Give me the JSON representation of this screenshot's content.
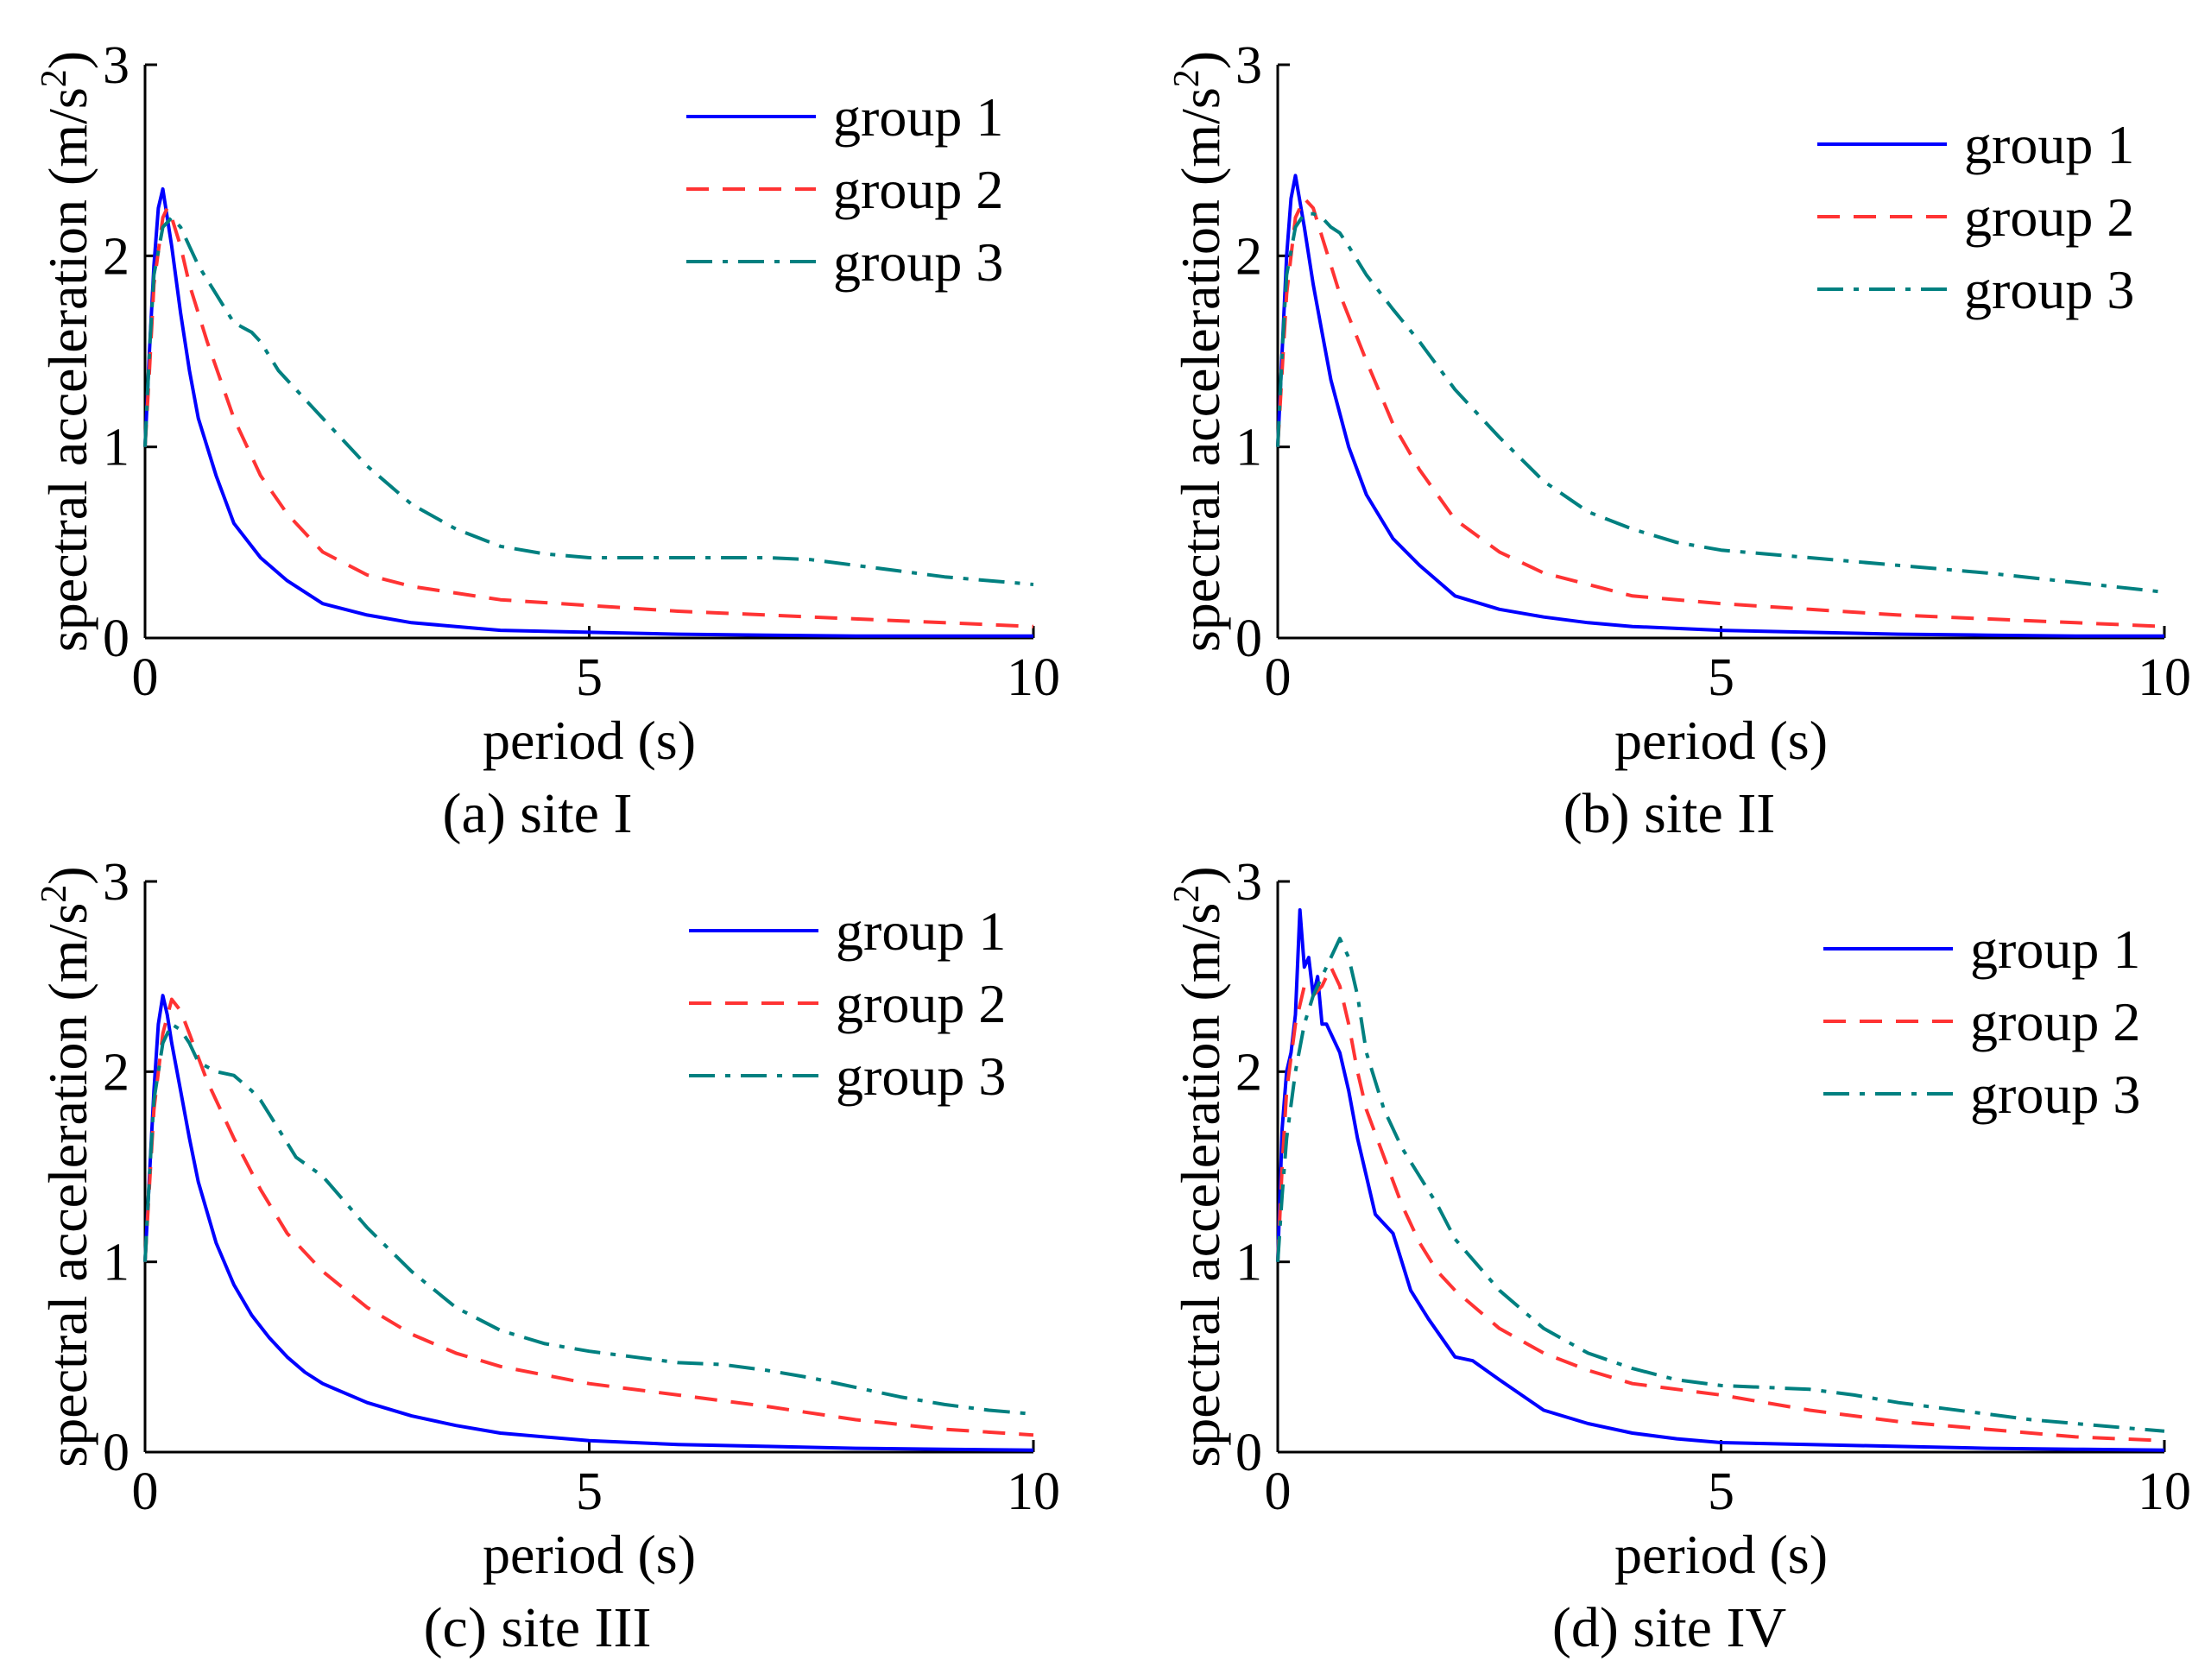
{
  "chart_data": [
    {
      "type": "line",
      "caption": "(a) site I",
      "xlabel": "period (s)",
      "ylabel": "spectral acceleration (m/s²)",
      "ylabel_main": "spectral acceleration (m/s",
      "ylabel_sup": "2",
      "ylabel_end": ")",
      "xlim": [
        0,
        10
      ],
      "ylim": [
        0,
        3
      ],
      "xticks": [
        "0",
        "5",
        "10"
      ],
      "yticks": [
        "0",
        "1",
        "2",
        "3"
      ],
      "legend_position": "top-right",
      "series": [
        {
          "name": "group 1",
          "style": "solid",
          "color": "#0000ff",
          "x": [
            0,
            0.05,
            0.1,
            0.15,
            0.2,
            0.3,
            0.4,
            0.5,
            0.6,
            0.8,
            1.0,
            1.3,
            1.6,
            2.0,
            2.5,
            3.0,
            3.5,
            4.0,
            5.0,
            6.0,
            7.0,
            8.0,
            9.0,
            10.0
          ],
          "y": [
            1.0,
            1.5,
            1.95,
            2.25,
            2.35,
            2.05,
            1.7,
            1.4,
            1.15,
            0.85,
            0.6,
            0.42,
            0.3,
            0.18,
            0.12,
            0.08,
            0.06,
            0.04,
            0.03,
            0.02,
            0.015,
            0.01,
            0.01,
            0.01
          ]
        },
        {
          "name": "group 2",
          "style": "dashed",
          "color": "#ff3333",
          "x": [
            0,
            0.05,
            0.1,
            0.2,
            0.25,
            0.3,
            0.4,
            0.5,
            0.7,
            1.0,
            1.3,
            1.6,
            2.0,
            2.5,
            3.0,
            4.0,
            5.0,
            6.0,
            7.0,
            8.0,
            9.0,
            10.0
          ],
          "y": [
            1.0,
            1.4,
            1.85,
            2.2,
            2.25,
            2.2,
            2.05,
            1.85,
            1.55,
            1.15,
            0.85,
            0.65,
            0.45,
            0.33,
            0.27,
            0.2,
            0.17,
            0.14,
            0.12,
            0.1,
            0.08,
            0.06
          ]
        },
        {
          "name": "group 3",
          "style": "dashdot",
          "color": "#008080",
          "x": [
            0,
            0.05,
            0.1,
            0.2,
            0.3,
            0.4,
            0.5,
            0.6,
            0.8,
            1.0,
            1.2,
            1.3,
            1.5,
            1.7,
            2.0,
            2.5,
            3.0,
            3.5,
            4.0,
            4.5,
            5.0,
            5.5,
            6.0,
            6.5,
            7.0,
            7.5,
            8.0,
            8.5,
            9.0,
            9.5,
            10.0
          ],
          "y": [
            1.0,
            1.5,
            1.9,
            2.15,
            2.2,
            2.15,
            2.05,
            1.95,
            1.8,
            1.65,
            1.6,
            1.55,
            1.4,
            1.3,
            1.15,
            0.9,
            0.7,
            0.57,
            0.48,
            0.44,
            0.42,
            0.42,
            0.42,
            0.42,
            0.42,
            0.41,
            0.38,
            0.35,
            0.32,
            0.3,
            0.28
          ]
        }
      ]
    },
    {
      "type": "line",
      "caption": "(b) site II",
      "xlabel": "period (s)",
      "ylabel": "spectral acceleration (m/s²)",
      "ylabel_main": "spectral acceleration (m/s",
      "ylabel_sup": "2",
      "ylabel_end": ")",
      "xlim": [
        0,
        10
      ],
      "ylim": [
        0,
        3
      ],
      "xticks": [
        "0",
        "5",
        "10"
      ],
      "yticks": [
        "0",
        "1",
        "2",
        "3"
      ],
      "legend_position": "top-right",
      "series": [
        {
          "name": "group 1",
          "style": "solid",
          "color": "#0000ff",
          "x": [
            0,
            0.05,
            0.1,
            0.15,
            0.2,
            0.3,
            0.4,
            0.5,
            0.6,
            0.8,
            1.0,
            1.3,
            1.6,
            2.0,
            2.5,
            3.0,
            3.5,
            4.0,
            5.0,
            6.0,
            7.0,
            8.0,
            9.0,
            10.0
          ],
          "y": [
            1.0,
            1.5,
            2.0,
            2.3,
            2.42,
            2.15,
            1.85,
            1.6,
            1.35,
            1.0,
            0.75,
            0.52,
            0.38,
            0.22,
            0.15,
            0.11,
            0.08,
            0.06,
            0.04,
            0.03,
            0.02,
            0.015,
            0.01,
            0.01
          ]
        },
        {
          "name": "group 2",
          "style": "dashed",
          "color": "#ff3333",
          "x": [
            0,
            0.05,
            0.1,
            0.2,
            0.3,
            0.4,
            0.5,
            0.7,
            1.0,
            1.3,
            1.6,
            2.0,
            2.5,
            3.0,
            4.0,
            5.0,
            6.0,
            7.0,
            8.0,
            9.0,
            10.0
          ],
          "y": [
            1.0,
            1.4,
            1.8,
            2.2,
            2.3,
            2.25,
            2.1,
            1.8,
            1.45,
            1.12,
            0.88,
            0.62,
            0.45,
            0.34,
            0.22,
            0.18,
            0.15,
            0.12,
            0.1,
            0.08,
            0.06
          ]
        },
        {
          "name": "group 3",
          "style": "dashdot",
          "color": "#008080",
          "x": [
            0,
            0.05,
            0.1,
            0.2,
            0.3,
            0.4,
            0.5,
            0.6,
            0.7,
            0.8,
            1.0,
            1.3,
            1.6,
            2.0,
            2.5,
            3.0,
            3.5,
            4.0,
            4.5,
            5.0,
            6.0,
            7.0,
            8.0,
            9.0,
            10.0
          ],
          "y": [
            1.0,
            1.5,
            1.9,
            2.15,
            2.22,
            2.22,
            2.2,
            2.15,
            2.12,
            2.05,
            1.9,
            1.72,
            1.55,
            1.3,
            1.05,
            0.82,
            0.66,
            0.57,
            0.5,
            0.46,
            0.42,
            0.38,
            0.34,
            0.29,
            0.24
          ]
        }
      ]
    },
    {
      "type": "line",
      "caption": "(c) site III",
      "xlabel": "period (s)",
      "ylabel": "spectral acceleration (m/s²)",
      "ylabel_main": "spectral acceleration (m/s",
      "ylabel_sup": "2",
      "ylabel_end": ")",
      "xlim": [
        0,
        10
      ],
      "ylim": [
        0,
        3
      ],
      "xticks": [
        "0",
        "5",
        "10"
      ],
      "yticks": [
        "0",
        "1",
        "2",
        "3"
      ],
      "legend_position": "top-right",
      "series": [
        {
          "name": "group 1",
          "style": "solid",
          "color": "#0000ff",
          "x": [
            0,
            0.05,
            0.1,
            0.15,
            0.2,
            0.25,
            0.3,
            0.4,
            0.5,
            0.6,
            0.8,
            1.0,
            1.2,
            1.4,
            1.6,
            1.8,
            2.0,
            2.5,
            3.0,
            3.5,
            4.0,
            5.0,
            6.0,
            7.0,
            8.0,
            9.0,
            10.0
          ],
          "y": [
            1.0,
            1.45,
            1.9,
            2.25,
            2.4,
            2.3,
            2.15,
            1.9,
            1.65,
            1.42,
            1.1,
            0.88,
            0.72,
            0.6,
            0.5,
            0.42,
            0.36,
            0.26,
            0.19,
            0.14,
            0.1,
            0.06,
            0.04,
            0.03,
            0.02,
            0.015,
            0.01
          ]
        },
        {
          "name": "group 2",
          "style": "dashed",
          "color": "#ff3333",
          "x": [
            0,
            0.05,
            0.1,
            0.2,
            0.3,
            0.4,
            0.5,
            0.7,
            1.0,
            1.3,
            1.6,
            2.0,
            2.5,
            3.0,
            3.5,
            4.0,
            5.0,
            6.0,
            7.0,
            8.0,
            9.0,
            10.0
          ],
          "y": [
            1.0,
            1.4,
            1.8,
            2.2,
            2.38,
            2.32,
            2.2,
            1.95,
            1.65,
            1.38,
            1.15,
            0.95,
            0.76,
            0.62,
            0.52,
            0.45,
            0.36,
            0.3,
            0.24,
            0.17,
            0.12,
            0.09
          ]
        },
        {
          "name": "group 3",
          "style": "dashdot",
          "color": "#008080",
          "x": [
            0,
            0.05,
            0.1,
            0.2,
            0.3,
            0.4,
            0.5,
            0.6,
            0.8,
            1.0,
            1.2,
            1.3,
            1.5,
            1.7,
            2.0,
            2.5,
            3.0,
            3.5,
            4.0,
            4.5,
            5.0,
            5.5,
            6.0,
            6.5,
            7.0,
            7.5,
            8.0,
            8.5,
            9.0,
            9.5,
            10.0
          ],
          "y": [
            1.0,
            1.45,
            1.85,
            2.15,
            2.25,
            2.22,
            2.15,
            2.05,
            2.0,
            1.98,
            1.9,
            1.85,
            1.7,
            1.55,
            1.45,
            1.18,
            0.95,
            0.76,
            0.64,
            0.57,
            0.53,
            0.5,
            0.47,
            0.46,
            0.43,
            0.39,
            0.34,
            0.29,
            0.25,
            0.22,
            0.2
          ]
        }
      ]
    },
    {
      "type": "line",
      "caption": "(d) site IV",
      "xlabel": "period (s)",
      "ylabel": "spectral acceleration (m/s²)",
      "ylabel_main": "spectral acceleration (m/s",
      "ylabel_sup": "2",
      "ylabel_end": ")",
      "xlim": [
        0,
        10
      ],
      "ylim": [
        0,
        3
      ],
      "xticks": [
        "0",
        "5",
        "10"
      ],
      "yticks": [
        "0",
        "1",
        "2",
        "3"
      ],
      "legend_position": "top-right",
      "series": [
        {
          "name": "group 1",
          "style": "solid",
          "color": "#0000ff",
          "x": [
            0,
            0.05,
            0.1,
            0.15,
            0.2,
            0.25,
            0.3,
            0.35,
            0.4,
            0.45,
            0.5,
            0.55,
            0.6,
            0.7,
            0.8,
            0.9,
            1.0,
            1.1,
            1.2,
            1.3,
            1.4,
            1.5,
            1.7,
            2.0,
            2.2,
            2.5,
            3.0,
            3.5,
            4.0,
            4.5,
            5.0,
            6.0,
            7.0,
            8.0,
            9.0,
            10.0
          ],
          "y": [
            1.0,
            1.7,
            2.0,
            2.1,
            2.3,
            2.85,
            2.55,
            2.6,
            2.4,
            2.5,
            2.25,
            2.25,
            2.2,
            2.1,
            1.9,
            1.65,
            1.45,
            1.25,
            1.2,
            1.15,
            1.0,
            0.85,
            0.7,
            0.5,
            0.48,
            0.38,
            0.22,
            0.15,
            0.1,
            0.07,
            0.05,
            0.04,
            0.03,
            0.02,
            0.015,
            0.01
          ]
        },
        {
          "name": "group 2",
          "style": "dashed",
          "color": "#ff3333",
          "x": [
            0,
            0.05,
            0.1,
            0.2,
            0.3,
            0.4,
            0.5,
            0.6,
            0.7,
            0.8,
            0.9,
            1.0,
            1.2,
            1.4,
            1.6,
            1.8,
            2.0,
            2.5,
            3.0,
            3.5,
            4.0,
            5.0,
            6.0,
            7.0,
            8.0,
            9.0,
            10.0
          ],
          "y": [
            1.0,
            1.5,
            1.9,
            2.25,
            2.45,
            2.4,
            2.45,
            2.55,
            2.45,
            2.25,
            2.0,
            1.8,
            1.55,
            1.3,
            1.1,
            0.95,
            0.85,
            0.65,
            0.52,
            0.43,
            0.36,
            0.3,
            0.22,
            0.16,
            0.12,
            0.08,
            0.06
          ]
        },
        {
          "name": "group 3",
          "style": "dashdot",
          "color": "#008080",
          "x": [
            0,
            0.05,
            0.1,
            0.2,
            0.3,
            0.4,
            0.5,
            0.6,
            0.7,
            0.8,
            0.9,
            1.0,
            1.2,
            1.4,
            1.6,
            1.8,
            2.0,
            2.5,
            3.0,
            3.5,
            4.0,
            4.5,
            5.0,
            5.5,
            6.0,
            6.5,
            7.0,
            7.5,
            8.0,
            8.5,
            9.0,
            9.5,
            10.0
          ],
          "y": [
            1.0,
            1.35,
            1.65,
            2.0,
            2.25,
            2.4,
            2.5,
            2.6,
            2.7,
            2.6,
            2.4,
            2.1,
            1.8,
            1.6,
            1.45,
            1.3,
            1.12,
            0.85,
            0.65,
            0.52,
            0.44,
            0.38,
            0.35,
            0.34,
            0.33,
            0.3,
            0.26,
            0.23,
            0.2,
            0.17,
            0.15,
            0.13,
            0.11
          ]
        }
      ]
    }
  ]
}
